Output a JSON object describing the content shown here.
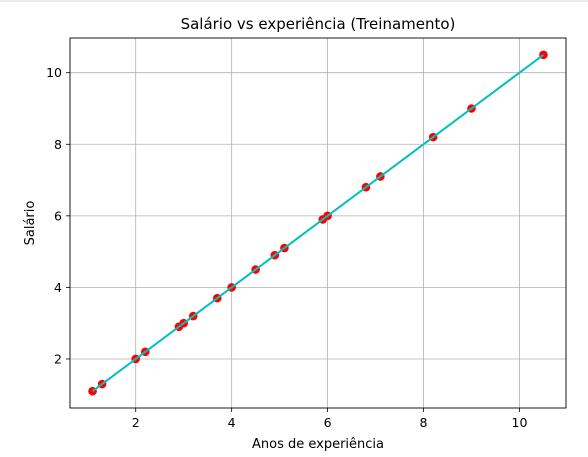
{
  "chart_data": {
    "type": "scatter",
    "title": "Salário vs experiência (Treinamento)",
    "xlabel": "Anos de experiência",
    "ylabel": "Salário",
    "xlim": [
      0.63,
      10.97
    ],
    "ylim": [
      0.63,
      10.97
    ],
    "xticks": [
      2,
      4,
      6,
      8,
      10
    ],
    "yticks": [
      2,
      4,
      6,
      8,
      10
    ],
    "grid": true,
    "points": {
      "x": [
        1.1,
        1.3,
        2.0,
        2.2,
        2.9,
        3.0,
        3.2,
        3.7,
        4.0,
        4.5,
        4.9,
        5.1,
        5.9,
        6.0,
        6.8,
        7.1,
        8.2,
        9.0,
        10.5
      ],
      "y": [
        1.1,
        1.3,
        2.0,
        2.2,
        2.9,
        3.0,
        3.2,
        3.7,
        4.0,
        4.5,
        4.9,
        5.1,
        5.9,
        6.0,
        6.8,
        7.1,
        8.2,
        9.0,
        10.5
      ],
      "color": "#ff0000"
    },
    "fit_line": {
      "x": [
        1.1,
        10.5
      ],
      "y": [
        1.1,
        10.5
      ],
      "color": "#00bfbf"
    }
  },
  "colors": {
    "grid": "#b0b0b0",
    "axes": "#000000"
  }
}
